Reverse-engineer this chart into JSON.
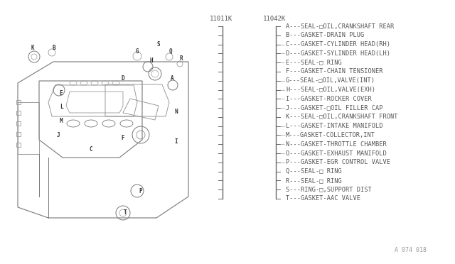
{
  "background_color": "#ffffff",
  "part_number_left": "11011K",
  "part_number_right": "11042K",
  "watermark": "A 074 018",
  "parts": [
    {
      "letter": "A",
      "description": "SEAL-□OIL,CRANKSHAFT REAR",
      "has_tick": false
    },
    {
      "letter": "B",
      "description": "GASKET-DRAIN PLUG",
      "has_tick": false
    },
    {
      "letter": "C",
      "description": "GASKET-CYLINDER HEAD(RH)",
      "has_tick": true
    },
    {
      "letter": "D",
      "description": "GASKET-SYLINDER HEAD(LH)",
      "has_tick": true
    },
    {
      "letter": "E",
      "description": "SEAL-□ RING",
      "has_tick": true
    },
    {
      "letter": "F",
      "description": "GASKET-CHAIN TENSIONER",
      "has_tick": false
    },
    {
      "letter": "G",
      "description": "SEAL-□OIL,VALVE(INT)",
      "has_tick": true
    },
    {
      "letter": "H",
      "description": "SEAL-□OIL,VALVE(EXH)",
      "has_tick": true
    },
    {
      "letter": "I",
      "description": "GASKET-ROCKER COVER",
      "has_tick": true
    },
    {
      "letter": "J",
      "description": "GASKET-□OIL FILLER CAP",
      "has_tick": true
    },
    {
      "letter": "K",
      "description": "SEAL-□OIL,CRANKSHAFT FRONT",
      "has_tick": false
    },
    {
      "letter": "L",
      "description": "GASKET-INTAKE MANIFOLD",
      "has_tick": true
    },
    {
      "letter": "M",
      "description": "GASKET-COLLECTOR,INT",
      "has_tick": true
    },
    {
      "letter": "N",
      "description": "GASKET-THROTTLE CHAMBER",
      "has_tick": true
    },
    {
      "letter": "O",
      "description": "GASKET-EXHAUST MANIFOLD",
      "has_tick": true
    },
    {
      "letter": "P",
      "description": "GASKET-EGR CONTROL VALVE",
      "has_tick": true
    },
    {
      "letter": "Q",
      "description": "SEAL-□ RING",
      "has_tick": false
    },
    {
      "letter": "R",
      "description": "SEAL-□ RING",
      "has_tick": false
    },
    {
      "letter": "S",
      "description": "RING-□,SUPPORT DIST",
      "has_tick": false
    },
    {
      "letter": "T",
      "description": "GASKET-AAC VALVE",
      "has_tick": false
    }
  ],
  "text_color": "#555555",
  "line_color": "#888888",
  "font_size": 6.2,
  "title_font_size": 7.5
}
